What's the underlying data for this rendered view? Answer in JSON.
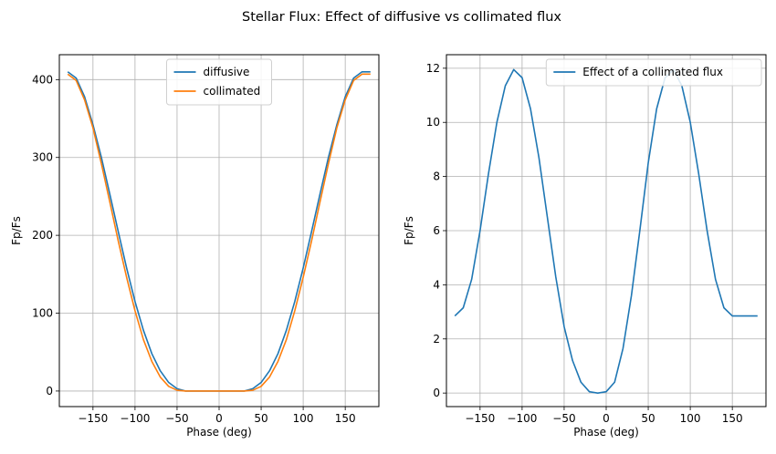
{
  "figure_title": "Stellar Flux: Effect of diffusive vs collimated flux",
  "chart_data": [
    {
      "type": "line",
      "xlabel": "Phase (deg)",
      "ylabel": "Fp/Fs",
      "xlim": [
        -190,
        190
      ],
      "ylim": [
        -20,
        432
      ],
      "xticks": [
        -150,
        -100,
        -50,
        0,
        50,
        100,
        150
      ],
      "yticks": [
        0,
        100,
        200,
        300,
        400
      ],
      "grid": true,
      "legend_position": "top-center",
      "x": [
        -180,
        -170,
        -160,
        -150,
        -140,
        -130,
        -120,
        -110,
        -100,
        -90,
        -80,
        -70,
        -60,
        -50,
        -40,
        -30,
        -20,
        -10,
        0,
        10,
        20,
        30,
        40,
        50,
        60,
        70,
        80,
        90,
        100,
        110,
        120,
        130,
        140,
        150,
        160,
        170,
        180
      ],
      "series": [
        {
          "name": "diffusive",
          "color": "#1f77b4",
          "values": [
            410,
            402,
            378,
            342,
            300,
            253,
            205,
            158,
            115,
            78,
            48,
            26,
            11,
            3,
            0,
            0,
            0,
            0,
            0,
            0,
            0,
            0,
            3,
            11,
            26,
            48,
            78,
            115,
            158,
            205,
            253,
            300,
            342,
            378,
            402,
            410,
            410
          ]
        },
        {
          "name": "collimated",
          "color": "#ff7f0e",
          "values": [
            407,
            399,
            374,
            338,
            292,
            243,
            193,
            146,
            103,
            66,
            38,
            18,
            6,
            1,
            0,
            0,
            0,
            0,
            0,
            0,
            0,
            0,
            1,
            6,
            18,
            38,
            66,
            103,
            146,
            193,
            243,
            292,
            338,
            374,
            399,
            407,
            407
          ]
        }
      ]
    },
    {
      "type": "line",
      "xlabel": "Phase (deg)",
      "ylabel": "Fp/Fs",
      "xlim": [
        -190,
        190
      ],
      "ylim": [
        -0.5,
        12.5
      ],
      "xticks": [
        -150,
        -100,
        -50,
        0,
        50,
        100,
        150
      ],
      "yticks": [
        0,
        2,
        4,
        6,
        8,
        10,
        12
      ],
      "grid": true,
      "legend_position": "top-right",
      "x": [
        -180,
        -170,
        -160,
        -150,
        -140,
        -130,
        -120,
        -110,
        -100,
        -90,
        -80,
        -70,
        -60,
        -50,
        -40,
        -30,
        -20,
        -10,
        0,
        10,
        20,
        30,
        40,
        50,
        60,
        70,
        80,
        90,
        100,
        110,
        120,
        130,
        140,
        150,
        160,
        170,
        180
      ],
      "series": [
        {
          "name": "Effect of a collimated flux",
          "color": "#1f77b4",
          "values": [
            2.85,
            3.15,
            4.2,
            6.0,
            8.1,
            10.0,
            11.35,
            11.95,
            11.65,
            10.5,
            8.7,
            6.5,
            4.3,
            2.45,
            1.2,
            0.4,
            0.05,
            0.0,
            0.05,
            0.4,
            1.65,
            3.6,
            6.0,
            8.5,
            10.5,
            11.65,
            11.95,
            11.35,
            10.0,
            8.1,
            6.0,
            4.2,
            3.15,
            2.85,
            2.85,
            2.85,
            2.85
          ]
        }
      ]
    }
  ]
}
